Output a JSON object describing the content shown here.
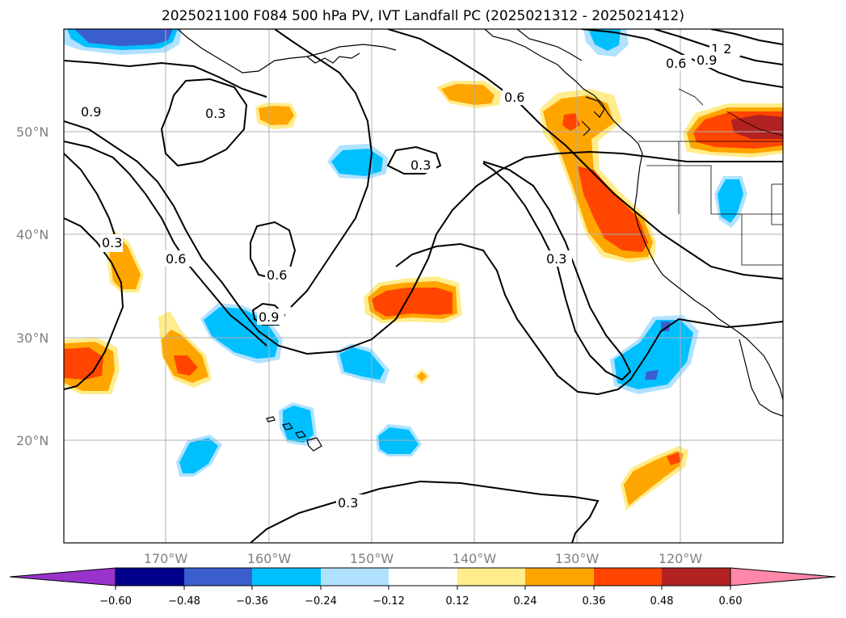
{
  "title": "2025021100 F084 500 hPa PV, IVT Landfall PC (2025021312 - 2025021412)",
  "latitude_labels": [
    "50°N",
    "40°N",
    "30°N",
    "20°N"
  ],
  "longitude_labels": [
    "170°W",
    "160°W",
    "150°W",
    "140°W",
    "130°W",
    "120°W"
  ],
  "contour_labels": [
    "1.2",
    "0.9",
    "0.6",
    "0.6",
    "0.9",
    "0.3",
    "0.3",
    "0.3",
    "0.6",
    "0.6",
    "0.9",
    "0.3",
    "0.3"
  ],
  "colorbar": {
    "ticks": [
      "−0.60",
      "−0.48",
      "−0.36",
      "−0.24",
      "−0.12",
      "0.12",
      "0.24",
      "0.36",
      "0.48",
      "0.60"
    ],
    "colors": [
      "#9933cc",
      "#00008b",
      "#3a5fcd",
      "#00bfff",
      "#b0e2ff",
      "#ffffff",
      "#ffec8b",
      "#ffa500",
      "#ff4500",
      "#b22222",
      "#ff88aa"
    ]
  }
}
